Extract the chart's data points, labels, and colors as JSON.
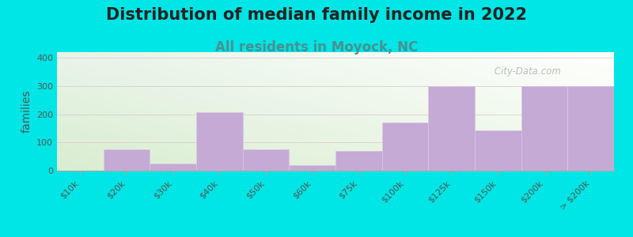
{
  "title": "Distribution of median family income in 2022",
  "subtitle": "All residents in Moyock, NC",
  "subtitle_color": "#4a9090",
  "ylabel": "families",
  "background_color": "#00e5e5",
  "bar_color": "#c4aad4",
  "bar_edge_color": "#d8c8e8",
  "watermark": " City-Data.com",
  "categories": [
    "$10k",
    "$20k",
    "$30k",
    "$40k",
    "$50k",
    "$60k",
    "$75k",
    "$100k",
    "$125k",
    "$150k",
    "$200k",
    "> $200k"
  ],
  "values": [
    0,
    75,
    25,
    207,
    75,
    20,
    70,
    170,
    300,
    143,
    300,
    300
  ],
  "bar_widths": [
    1,
    1,
    1,
    1,
    1,
    1,
    1,
    1,
    1,
    1,
    1,
    1
  ],
  "ylim": [
    0,
    420
  ],
  "yticks": [
    0,
    100,
    200,
    300,
    400
  ],
  "grid_color": "#ddc8cc",
  "title_fontsize": 15,
  "subtitle_fontsize": 12,
  "tick_fontsize": 8,
  "ylabel_fontsize": 10
}
